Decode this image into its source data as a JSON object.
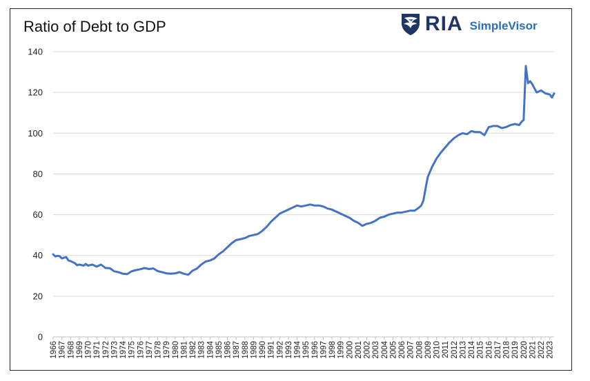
{
  "brand": {
    "ria_text": "RIA",
    "simplevisor_text": "SimpleVisor",
    "primary_color": "#1f3566",
    "accent_color": "#2a6fb8",
    "icon": "eagle-shield-icon"
  },
  "chart_data": {
    "type": "line",
    "title": "Ratio of Debt to GDP",
    "xlabel": "",
    "ylabel": "",
    "ylim": [
      0,
      140
    ],
    "yticks": [
      0,
      20,
      40,
      60,
      80,
      100,
      120,
      140
    ],
    "xlim": [
      1966,
      2023.5
    ],
    "xticks": [
      "1966",
      "1967",
      "1968",
      "1969",
      "1970",
      "1971",
      "1972",
      "1973",
      "1974",
      "1975",
      "1976",
      "1977",
      "1978",
      "1979",
      "1980",
      "1981",
      "1982",
      "1983",
      "1984",
      "1985",
      "1986",
      "1987",
      "1988",
      "1989",
      "1990",
      "1991",
      "1992",
      "1993",
      "1994",
      "1995",
      "1996",
      "1997",
      "1998",
      "1999",
      "2000",
      "2001",
      "2002",
      "2003",
      "2004",
      "2005",
      "2006",
      "2007",
      "2008",
      "2009",
      "2010",
      "2011",
      "2012",
      "2013",
      "2014",
      "2015",
      "2016",
      "2017",
      "2018",
      "2019",
      "2020",
      "2021",
      "2022",
      "2023"
    ],
    "grid": "horizontal",
    "line_color": "#4472c4",
    "series": [
      {
        "x": [
          1966.0,
          1966.25,
          1966.5,
          1966.75,
          1967.0,
          1967.5,
          1967.75,
          1968.0,
          1968.5,
          1968.75,
          1969.0,
          1969.5,
          1969.75,
          1970.0,
          1970.5,
          1971.0,
          1971.5,
          1972.0,
          1972.5,
          1972.75,
          1973.0,
          1973.5,
          1974.0,
          1974.5,
          1975.0,
          1975.5,
          1976.0,
          1976.5,
          1977.0,
          1977.5,
          1978.0,
          1978.5,
          1979.0,
          1979.5,
          1980.0,
          1980.5,
          1981.0,
          1981.5,
          1982.0,
          1982.5,
          1983.0,
          1983.5,
          1984.0,
          1984.5,
          1985.0,
          1985.5,
          1986.0,
          1986.5,
          1987.0,
          1987.5,
          1988.0,
          1988.5,
          1989.0,
          1989.5,
          1990.0,
          1990.5,
          1991.0,
          1991.5,
          1992.0,
          1992.5,
          1993.0,
          1993.5,
          1994.0,
          1994.5,
          1995.0,
          1995.5,
          1996.0,
          1996.5,
          1997.0,
          1997.5,
          1998.0,
          1998.5,
          1999.0,
          1999.5,
          2000.0,
          2000.5,
          2001.0,
          2001.5,
          2002.0,
          2002.5,
          2003.0,
          2003.5,
          2004.0,
          2004.5,
          2005.0,
          2005.5,
          2006.0,
          2006.5,
          2007.0,
          2007.5,
          2008.0,
          2008.25,
          2008.5,
          2008.75,
          2009.0,
          2009.5,
          2010.0,
          2010.5,
          2011.0,
          2011.5,
          2012.0,
          2012.5,
          2013.0,
          2013.5,
          2014.0,
          2014.5,
          2015.0,
          2015.5,
          2016.0,
          2016.5,
          2017.0,
          2017.5,
          2018.0,
          2018.5,
          2019.0,
          2019.5,
          2019.75,
          2020.0,
          2020.25,
          2020.5,
          2020.75,
          2021.0,
          2021.5,
          2022.0,
          2022.5,
          2023.0,
          2023.25,
          2023.5
        ],
        "y": [
          40.5,
          39.5,
          39.8,
          39.6,
          38.5,
          39.2,
          37.5,
          37.2,
          36.2,
          35.2,
          35.5,
          35.0,
          35.8,
          35.0,
          35.5,
          34.5,
          35.5,
          33.8,
          33.7,
          33.0,
          32.2,
          31.8,
          31.0,
          30.8,
          32.2,
          32.8,
          33.2,
          33.8,
          33.3,
          33.6,
          32.3,
          31.8,
          31.2,
          31.0,
          31.2,
          31.8,
          31.0,
          30.5,
          32.5,
          33.5,
          35.5,
          37.0,
          37.5,
          38.5,
          40.5,
          42.0,
          44.0,
          46.0,
          47.5,
          48.0,
          48.5,
          49.5,
          50.0,
          50.5,
          52.0,
          54.0,
          56.5,
          58.5,
          60.5,
          61.5,
          62.5,
          63.5,
          64.5,
          64.0,
          64.5,
          65.0,
          64.5,
          64.5,
          64.0,
          63.0,
          62.5,
          61.5,
          60.5,
          59.5,
          58.5,
          57.0,
          56.0,
          54.5,
          55.5,
          56.0,
          57.0,
          58.5,
          59.0,
          60.0,
          60.5,
          61.0,
          61.0,
          61.5,
          62.0,
          62.0,
          63.5,
          64.5,
          67.0,
          73.0,
          78.5,
          83.5,
          87.5,
          90.5,
          93.0,
          95.5,
          97.5,
          99.0,
          100.0,
          99.5,
          101.0,
          100.5,
          100.5,
          99.0,
          103.0,
          103.5,
          103.5,
          102.5,
          103.0,
          104.0,
          104.5,
          104.0,
          105.5,
          106.5,
          133.0,
          124.5,
          125.5,
          124.0,
          120.0,
          121.0,
          119.5,
          119.0,
          117.5,
          119.5
        ]
      }
    ]
  }
}
